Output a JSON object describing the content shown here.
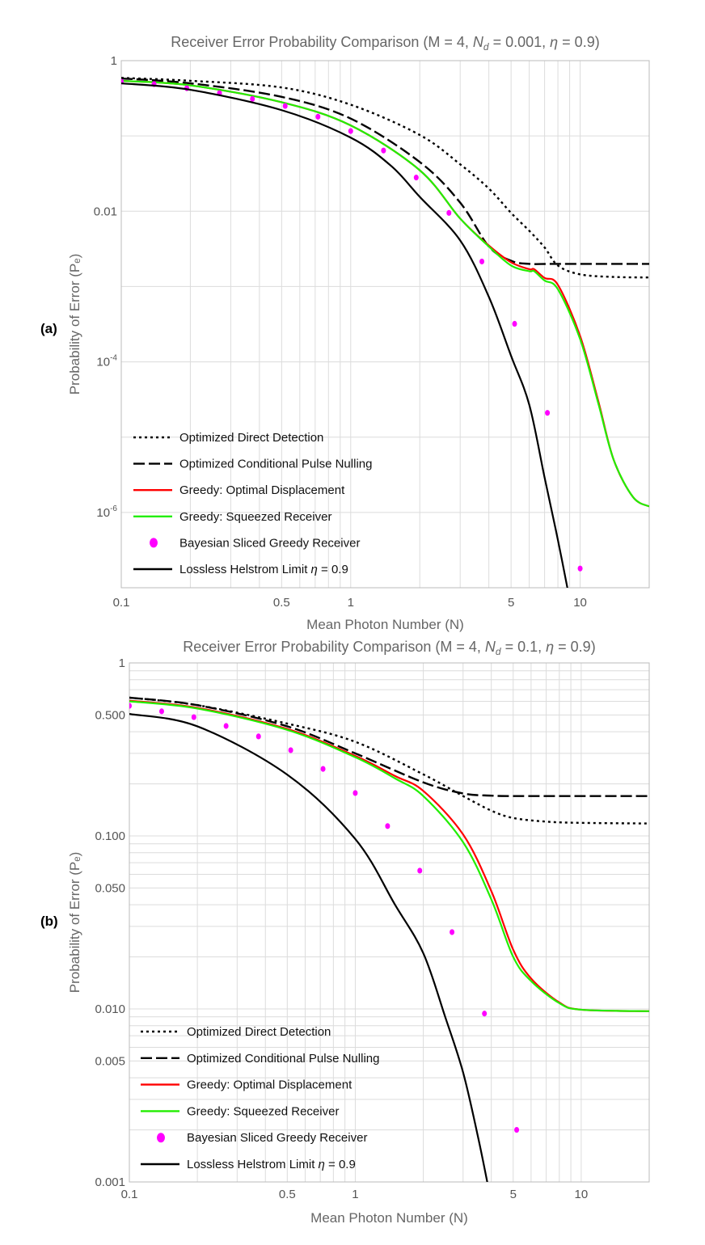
{
  "chart_data": [
    {
      "type": "line",
      "panel_label": "(a)",
      "title": "Receiver Error Probability Comparison (M = 4, N_d = 0.001, η = 0.9)",
      "title_parts": {
        "prefix": "Receiver Error Probability Comparison (M = 4, ",
        "nd_sym": "N",
        "nd_sub": "d",
        "nd_val": " = 0.001, ",
        "eta": "η",
        "suffix": " = 0.9)"
      },
      "xlabel": "Mean Photon Number (N)",
      "ylabel": "Probability of Error (Pₑ)",
      "xscale": "log",
      "yscale": "log",
      "xlim": [
        0.1,
        20
      ],
      "ylim": [
        1e-07,
        1
      ],
      "xticks": [
        {
          "v": 0.1,
          "label": "0.1"
        },
        {
          "v": 0.5,
          "label": "0.5"
        },
        {
          "v": 1,
          "label": "1"
        },
        {
          "v": 5,
          "label": "5"
        },
        {
          "v": 10,
          "label": "10"
        }
      ],
      "yticks": [
        {
          "v": 1,
          "label": "1"
        },
        {
          "v": 0.01,
          "label": "0.01"
        },
        {
          "v": 0.0001,
          "base": "10",
          "exp": "-4"
        },
        {
          "v": 1e-06,
          "base": "10",
          "exp": "-6"
        }
      ],
      "grid": true,
      "legend_position": "bottom-left",
      "series": [
        {
          "name": "Optimized Direct Detection",
          "style": "dotted",
          "color": "#000000",
          "x": [
            0.1,
            0.2,
            0.5,
            1,
            2,
            3,
            4,
            5,
            6,
            7,
            8,
            10,
            14,
            20
          ],
          "y": [
            0.59,
            0.54,
            0.44,
            0.26,
            0.103,
            0.042,
            0.02,
            0.0095,
            0.0055,
            0.0033,
            0.0019,
            0.00145,
            0.00134,
            0.00132
          ]
        },
        {
          "name": "Optimized Conditional Pulse Nulling",
          "style": "dashed",
          "color": "#000000",
          "x": [
            0.1,
            0.2,
            0.5,
            1,
            2,
            3,
            4,
            5,
            6,
            8,
            20
          ],
          "y": [
            0.58,
            0.5,
            0.33,
            0.17,
            0.045,
            0.013,
            0.0034,
            0.0022,
            0.002,
            0.002,
            0.002
          ]
        },
        {
          "name": "Greedy: Optimal Displacement",
          "style": "solid",
          "color": "#ff0000",
          "x": [
            0.1,
            0.2,
            0.5,
            1,
            2,
            3,
            4,
            5,
            6,
            6.3,
            7,
            8,
            10,
            12,
            14,
            17,
            20
          ],
          "y": [
            0.54,
            0.47,
            0.28,
            0.138,
            0.035,
            0.008,
            0.0035,
            0.0021,
            0.0017,
            0.0017,
            0.0013,
            0.00105,
            0.00022,
            3e-05,
            5e-06,
            1.6e-06,
            1.2e-06
          ]
        },
        {
          "name": "Greedy: Squeezed Receiver",
          "style": "solid",
          "color": "#22ee00",
          "x": [
            0.1,
            0.2,
            0.5,
            1,
            2,
            3,
            4,
            5,
            6,
            6.3,
            7,
            8,
            10,
            12,
            14,
            17,
            20
          ],
          "y": [
            0.54,
            0.47,
            0.28,
            0.138,
            0.035,
            0.008,
            0.0034,
            0.0019,
            0.0016,
            0.0016,
            0.0012,
            0.00092,
            0.0002,
            2.8e-05,
            5e-06,
            1.6e-06,
            1.2e-06
          ]
        },
        {
          "name": "Bayesian Sliced Greedy Receiver",
          "style": "points",
          "color": "#ff00ff",
          "x": [
            0.1,
            0.139,
            0.193,
            0.268,
            0.373,
            0.518,
            0.72,
            1,
            1.39,
            1.93,
            2.68,
            3.73,
            5.18,
            7.2,
            10
          ],
          "y": [
            0.525,
            0.488,
            0.43,
            0.37,
            0.31,
            0.25,
            0.18,
            0.116,
            0.064,
            0.028,
            0.0095,
            0.00215,
            0.00032,
            2.1e-05,
            1.8e-07
          ]
        },
        {
          "name": "Lossless Helstrom Limit η = 0.9",
          "name_prefix": "Lossless Helstrom Limit ",
          "name_eta": "η",
          "name_suffix": " = 0.9",
          "style": "solid",
          "color": "#000000",
          "x": [
            0.1,
            0.2,
            0.5,
            1,
            1.5,
            2,
            3,
            4,
            5,
            6,
            7,
            8,
            9
          ],
          "y": [
            0.5,
            0.41,
            0.22,
            0.095,
            0.04,
            0.0155,
            0.0041,
            0.00073,
            0.00012,
            2.7e-05,
            2.9e-06,
            4.3e-07,
            7e-08
          ]
        }
      ]
    },
    {
      "type": "line",
      "panel_label": "(b)",
      "title": "Receiver Error Probability Comparison (M = 4, N_d = 0.1, η = 0.9)",
      "title_parts": {
        "prefix": "Receiver Error Probability Comparison (M = 4, ",
        "nd_sym": "N",
        "nd_sub": "d",
        "nd_val": " = 0.1, ",
        "eta": "η",
        "suffix": " = 0.9)"
      },
      "xlabel": "Mean Photon Number (N)",
      "ylabel": "Probability of Error (Pₑ)",
      "xscale": "log",
      "yscale": "log",
      "xlim": [
        0.1,
        20
      ],
      "ylim": [
        0.001,
        1
      ],
      "xticks": [
        {
          "v": 0.1,
          "label": "0.1"
        },
        {
          "v": 0.5,
          "label": "0.5"
        },
        {
          "v": 1,
          "label": "1"
        },
        {
          "v": 5,
          "label": "5"
        },
        {
          "v": 10,
          "label": "10"
        }
      ],
      "yticks": [
        {
          "v": 1,
          "label": "1"
        },
        {
          "v": 0.5,
          "label": "0.500"
        },
        {
          "v": 0.1,
          "label": "0.100"
        },
        {
          "v": 0.05,
          "label": "0.050"
        },
        {
          "v": 0.01,
          "label": "0.010"
        },
        {
          "v": 0.005,
          "label": "0.005"
        },
        {
          "v": 0.001,
          "label": "0.001"
        }
      ],
      "grid": true,
      "legend_position": "bottom-left",
      "series": [
        {
          "name": "Optimized Direct Detection",
          "style": "dotted",
          "color": "#000000",
          "x": [
            0.1,
            0.2,
            0.5,
            1,
            2,
            3,
            4,
            5,
            7,
            10,
            20
          ],
          "y": [
            0.63,
            0.57,
            0.446,
            0.35,
            0.227,
            0.17,
            0.14,
            0.127,
            0.121,
            0.119,
            0.118
          ]
        },
        {
          "name": "Optimized Conditional Pulse Nulling",
          "style": "dashed",
          "color": "#000000",
          "x": [
            0.1,
            0.2,
            0.5,
            1,
            2,
            3,
            4,
            5,
            10,
            20
          ],
          "y": [
            0.63,
            0.57,
            0.43,
            0.3,
            0.204,
            0.176,
            0.171,
            0.17,
            0.17,
            0.17
          ]
        },
        {
          "name": "Greedy: Optimal Displacement",
          "style": "solid",
          "color": "#ff0000",
          "x": [
            0.1,
            0.2,
            0.5,
            1,
            1.5,
            2,
            3,
            4,
            5,
            6,
            8,
            10,
            20
          ],
          "y": [
            0.605,
            0.55,
            0.415,
            0.29,
            0.222,
            0.182,
            0.102,
            0.048,
            0.022,
            0.015,
            0.0109,
            0.0099,
            0.0097
          ]
        },
        {
          "name": "Greedy: Squeezed Receiver",
          "style": "solid",
          "color": "#22ee00",
          "x": [
            0.1,
            0.2,
            0.5,
            1,
            1.5,
            2,
            3,
            4,
            5,
            6,
            8,
            10,
            20
          ],
          "y": [
            0.6,
            0.545,
            0.41,
            0.285,
            0.215,
            0.17,
            0.092,
            0.043,
            0.02,
            0.0145,
            0.0108,
            0.0099,
            0.0097
          ]
        },
        {
          "name": "Bayesian Sliced Greedy Receiver",
          "style": "points",
          "color": "#ff00ff",
          "x": [
            0.1,
            0.139,
            0.193,
            0.268,
            0.373,
            0.518,
            0.72,
            1,
            1.39,
            1.93,
            2.68,
            3.73,
            5.18
          ],
          "y": [
            0.565,
            0.525,
            0.486,
            0.432,
            0.376,
            0.313,
            0.244,
            0.177,
            0.114,
            0.063,
            0.0278,
            0.0094,
            0.002
          ]
        },
        {
          "name": "Lossless Helstrom Limit η = 0.9",
          "name_prefix": "Lossless Helstrom Limit ",
          "name_eta": "η",
          "name_suffix": " = 0.9",
          "style": "solid",
          "color": "#000000",
          "x": [
            0.1,
            0.2,
            0.5,
            1,
            1.5,
            2,
            2.5,
            3,
            3.5,
            3.9
          ],
          "y": [
            0.507,
            0.43,
            0.226,
            0.096,
            0.04,
            0.021,
            0.009,
            0.0043,
            0.0018,
            0.0009
          ]
        }
      ]
    }
  ]
}
